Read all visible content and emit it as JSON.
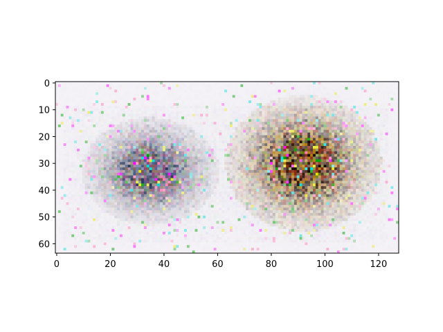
{
  "chart_data": {
    "type": "heatmap",
    "subtype": "imshow-rgb-image",
    "title": "",
    "xlabel": "",
    "ylabel": "",
    "image_shape": [
      64,
      128
    ],
    "xlim": [
      -0.5,
      127.5
    ],
    "ylim": [
      63.5,
      -0.5
    ],
    "y_axis_inverted": true,
    "grid": false,
    "legend": "none",
    "x_ticks": [
      0,
      20,
      40,
      60,
      80,
      100,
      120
    ],
    "y_ticks": [
      0,
      10,
      20,
      30,
      40,
      50,
      60
    ],
    "description_regions": [
      {
        "name": "left-blob",
        "center": [
          35,
          33
        ],
        "spread": [
          14,
          11
        ],
        "palette": [
          "#4a5a8a",
          "#8a4a7a",
          "#2c3a5c",
          "#5a7a6a",
          "#7a5a4a"
        ]
      },
      {
        "name": "right-blob",
        "center": [
          92,
          30
        ],
        "spread": [
          16,
          14
        ],
        "palette": [
          "#3a1a0a",
          "#8a2a10",
          "#b07a10",
          "#6a7a10",
          "#1a0a05"
        ]
      }
    ],
    "background_color": "#f4f2f6"
  }
}
